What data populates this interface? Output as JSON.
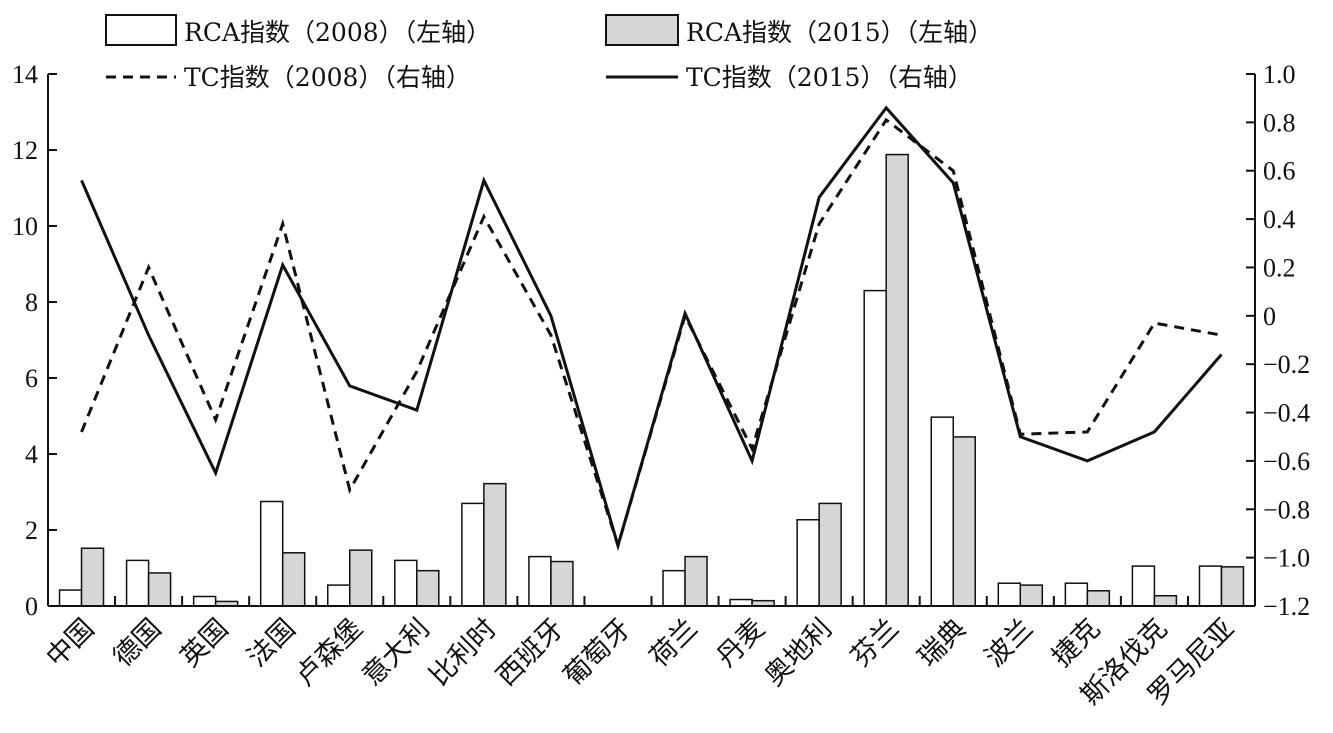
{
  "chart_data": {
    "type": "bar",
    "categories": [
      "中国",
      "德国",
      "英国",
      "法国",
      "卢森堡",
      "意大利",
      "比利时",
      "西班牙",
      "葡萄牙",
      "荷兰",
      "丹麦",
      "奥地利",
      "芬兰",
      "瑞典",
      "波兰",
      "捷克",
      "斯洛伐克",
      "罗马尼亚"
    ],
    "series": [
      {
        "name": "RCA指数（2008）（左轴）",
        "type": "bar",
        "axis": "left",
        "color": "#ffffff",
        "values": [
          0.42,
          1.2,
          0.25,
          2.75,
          0.55,
          1.2,
          2.7,
          1.3,
          0,
          0.93,
          0.17,
          2.27,
          8.3,
          4.97,
          0.6,
          0.6,
          1.05,
          1.05
        ]
      },
      {
        "name": "RCA指数（2015）（左轴）",
        "type": "bar",
        "axis": "left",
        "color": "#d4d6d7",
        "values": [
          1.52,
          0.87,
          0.12,
          1.4,
          1.47,
          0.93,
          3.22,
          1.17,
          0,
          1.3,
          0.14,
          2.7,
          11.88,
          4.45,
          0.55,
          0.4,
          0.27,
          1.03
        ]
      },
      {
        "name": "TC指数（2008）（右轴）",
        "type": "line",
        "axis": "right",
        "dash": true,
        "values": [
          -0.48,
          0.2,
          -0.43,
          0.38,
          -0.72,
          -0.23,
          0.41,
          -0.08,
          -0.95,
          0.0,
          -0.55,
          0.38,
          0.81,
          0.6,
          -0.49,
          -0.48,
          -0.03,
          -0.08
        ]
      },
      {
        "name": "TC指数（2015）（右轴）",
        "type": "line",
        "axis": "right",
        "dash": false,
        "values": [
          0.56,
          -0.08,
          -0.65,
          0.21,
          -0.29,
          -0.39,
          0.56,
          0.0,
          -0.95,
          0.01,
          -0.6,
          0.49,
          0.86,
          0.55,
          -0.5,
          -0.6,
          -0.48,
          -0.16
        ]
      }
    ],
    "left_axis": {
      "ylim": [
        0,
        14
      ],
      "ticks": [
        "0",
        "2",
        "4",
        "6",
        "8",
        "10",
        "12",
        "14"
      ]
    },
    "right_axis": {
      "ylim": [
        -1.2,
        1.0
      ],
      "ticks": [
        "−1.2",
        "−1.0",
        "−0.8",
        "−0.6",
        "−0.4",
        "−0.2",
        "0",
        "0.2",
        "0.4",
        "0.6",
        "0.8",
        "1.0"
      ]
    },
    "legend_position": "top",
    "grid": false,
    "title": "",
    "xlabel": "",
    "ylabel": ""
  }
}
